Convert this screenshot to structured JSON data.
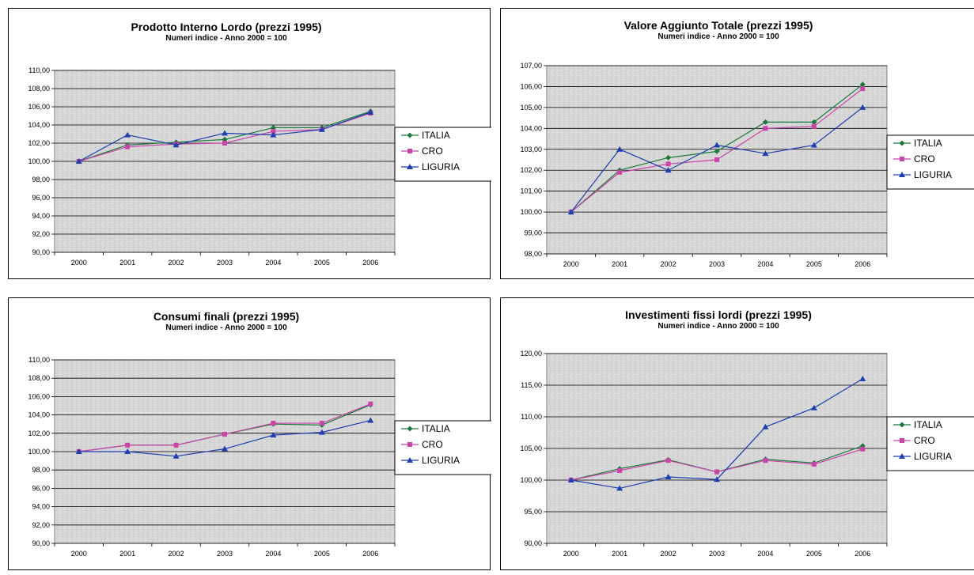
{
  "chart_data": [
    {
      "type": "line",
      "title": "Prodotto Interno Lordo (prezzi 1995)",
      "subtitle": "Numeri indice - Anno 2000 = 100",
      "categories": [
        "2000",
        "2001",
        "2002",
        "2003",
        "2004",
        "2005",
        "2006"
      ],
      "ylim": [
        90,
        110
      ],
      "ystep": 2,
      "yticks": [
        "90,00",
        "92,00",
        "94,00",
        "96,00",
        "98,00",
        "100,00",
        "102,00",
        "104,00",
        "106,00",
        "108,00",
        "110,00"
      ],
      "grid": true,
      "legend_position": "right",
      "series": [
        {
          "name": "ITALIA",
          "color": "#1b7a3a",
          "marker": "diamond",
          "values": [
            100.0,
            101.8,
            102.1,
            102.4,
            103.7,
            103.7,
            105.5
          ]
        },
        {
          "name": "CRO",
          "color": "#cc44aa",
          "marker": "square",
          "values": [
            100.0,
            101.6,
            101.9,
            102.0,
            103.3,
            103.5,
            105.3
          ]
        },
        {
          "name": "LIGURIA",
          "color": "#1f3fb0",
          "marker": "triangle",
          "values": [
            100.0,
            102.9,
            101.8,
            103.1,
            102.9,
            103.5,
            105.4
          ]
        }
      ]
    },
    {
      "type": "line",
      "title": "Valore Aggiunto Totale (prezzi 1995)",
      "subtitle": "Numeri indice - Anno 2000 = 100",
      "categories": [
        "2000",
        "2001",
        "2002",
        "2003",
        "2004",
        "2005",
        "2006"
      ],
      "ylim": [
        98,
        107
      ],
      "ystep": 1,
      "yticks": [
        "98,00",
        "99,00",
        "100,00",
        "101,00",
        "102,00",
        "103,00",
        "104,00",
        "105,00",
        "106,00",
        "107,00"
      ],
      "grid": true,
      "legend_position": "right",
      "series": [
        {
          "name": "ITALIA",
          "color": "#1b7a3a",
          "marker": "diamond",
          "values": [
            100.0,
            102.0,
            102.6,
            102.9,
            104.3,
            104.3,
            106.1
          ]
        },
        {
          "name": "CRO",
          "color": "#cc44aa",
          "marker": "square",
          "values": [
            100.0,
            101.9,
            102.3,
            102.5,
            104.0,
            104.1,
            105.9
          ]
        },
        {
          "name": "LIGURIA",
          "color": "#1f3fb0",
          "marker": "triangle",
          "values": [
            100.0,
            103.0,
            102.0,
            103.2,
            102.8,
            103.2,
            105.0
          ]
        }
      ]
    },
    {
      "type": "line",
      "title": "Consumi finali (prezzi 1995)",
      "subtitle": "Numeri indice - Anno 2000 = 100",
      "categories": [
        "2000",
        "2001",
        "2002",
        "2003",
        "2004",
        "2005",
        "2006"
      ],
      "ylim": [
        90,
        110
      ],
      "ystep": 2,
      "yticks": [
        "90,00",
        "92,00",
        "94,00",
        "96,00",
        "98,00",
        "100,00",
        "102,00",
        "104,00",
        "106,00",
        "108,00",
        "110,00"
      ],
      "grid": true,
      "legend_position": "right",
      "series": [
        {
          "name": "ITALIA",
          "color": "#1b7a3a",
          "marker": "diamond",
          "values": [
            100.0,
            100.7,
            100.7,
            101.9,
            103.0,
            102.9,
            105.1
          ]
        },
        {
          "name": "CRO",
          "color": "#cc44aa",
          "marker": "square",
          "values": [
            100.0,
            100.7,
            100.7,
            101.9,
            103.1,
            103.1,
            105.2
          ]
        },
        {
          "name": "LIGURIA",
          "color": "#1f3fb0",
          "marker": "triangle",
          "values": [
            100.0,
            100.0,
            99.5,
            100.3,
            101.8,
            102.1,
            103.4
          ]
        }
      ]
    },
    {
      "type": "line",
      "title": "Investimenti fissi lordi (prezzi 1995)",
      "subtitle": "Numeri indice - Anno 2000 = 100",
      "categories": [
        "2000",
        "2001",
        "2002",
        "2003",
        "2004",
        "2005",
        "2006"
      ],
      "ylim": [
        90,
        120
      ],
      "ystep": 5,
      "yticks": [
        "90,00",
        "95,00",
        "100,00",
        "105,00",
        "110,00",
        "115,00",
        "120,00"
      ],
      "grid": true,
      "legend_position": "right",
      "series": [
        {
          "name": "ITALIA",
          "color": "#1b7a3a",
          "marker": "diamond",
          "values": [
            100.0,
            101.8,
            103.2,
            101.3,
            103.3,
            102.7,
            105.4
          ]
        },
        {
          "name": "CRO",
          "color": "#cc44aa",
          "marker": "square",
          "values": [
            100.0,
            101.5,
            103.1,
            101.3,
            103.1,
            102.5,
            104.9
          ]
        },
        {
          "name": "LIGURIA",
          "color": "#1f3fb0",
          "marker": "triangle",
          "values": [
            100.0,
            98.7,
            100.5,
            100.1,
            108.4,
            111.4,
            116.0
          ]
        }
      ]
    }
  ]
}
